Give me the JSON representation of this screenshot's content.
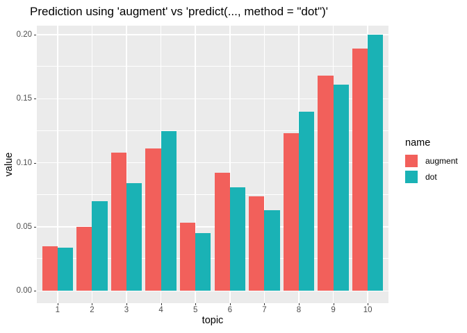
{
  "chart_data": {
    "type": "bar",
    "title": "Prediction using 'augment' vs 'predict(..., method = \"dot\")'",
    "xlabel": "topic",
    "ylabel": "value",
    "categories": [
      "1",
      "2",
      "3",
      "4",
      "5",
      "6",
      "7",
      "8",
      "9",
      "10"
    ],
    "series": [
      {
        "name": "augment",
        "color": "#F2605B",
        "values": [
          0.035,
          0.05,
          0.108,
          0.111,
          0.053,
          0.092,
          0.074,
          0.123,
          0.168,
          0.189
        ]
      },
      {
        "name": "dot",
        "color": "#1AB2B5",
        "values": [
          0.034,
          0.07,
          0.084,
          0.125,
          0.045,
          0.081,
          0.063,
          0.14,
          0.161,
          0.2
        ]
      }
    ],
    "ylim": [
      0,
      0.2
    ],
    "yticks": [
      0.0,
      0.05,
      0.1,
      0.15,
      0.2
    ],
    "ytick_labels": [
      "0.00",
      "0.05",
      "0.10",
      "0.15",
      "0.20"
    ],
    "yminor": [
      0.025,
      0.075,
      0.125,
      0.175
    ],
    "legend_title": "name",
    "legend_position": "right",
    "grid": "major+minor horizontal, major vertical",
    "bar_layout": "dodged",
    "colors": {
      "panel_bg": "#EBEBEB",
      "grid": "#FFFFFF",
      "tick_label": "#4D4D4D",
      "tick_mark": "#333333",
      "text": "#000000"
    }
  }
}
